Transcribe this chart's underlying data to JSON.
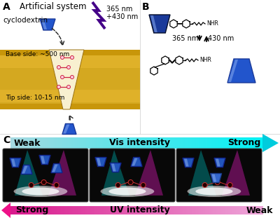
{
  "panel_A_label": "A",
  "panel_B_label": "B",
  "panel_C_label": "C",
  "A_title": "Artificial system",
  "A_cyclodextrin": "cyclodextrin",
  "A_nm1": "365 nm",
  "A_nm2": "+430 nm",
  "A_base": "Base side: ~500 nm",
  "A_tip": "Tip side: 10-15 nm",
  "B_nm1": "365 nm",
  "B_nm2": "430 nm",
  "B_nhr": "NHR",
  "C_weak_vis": "Weak",
  "C_strong_vis": "Strong",
  "C_vis": "Vis intensity",
  "C_uv": "UV intensity",
  "C_weak_uv": "Weak",
  "C_strong_uv": "Strong",
  "bg_color": "#ffffff",
  "gold_dark": "#c8960a",
  "gold_light": "#e8b830",
  "gold_mid": "#d4a820",
  "cd_blue_dark": "#1a3a9a",
  "cd_blue_mid": "#2255cc",
  "cd_blue_light": "#4488dd",
  "cd_highlight": "#88aaee",
  "mol_color": "#cc2244",
  "lightning_color": "#440088",
  "cyan_arrow": "#00ccdd",
  "pink_arrow": "#ee1188",
  "label_fontsize": 10,
  "text_fontsize": 8,
  "small_fontsize": 6.5,
  "arrow_text_size": 9
}
